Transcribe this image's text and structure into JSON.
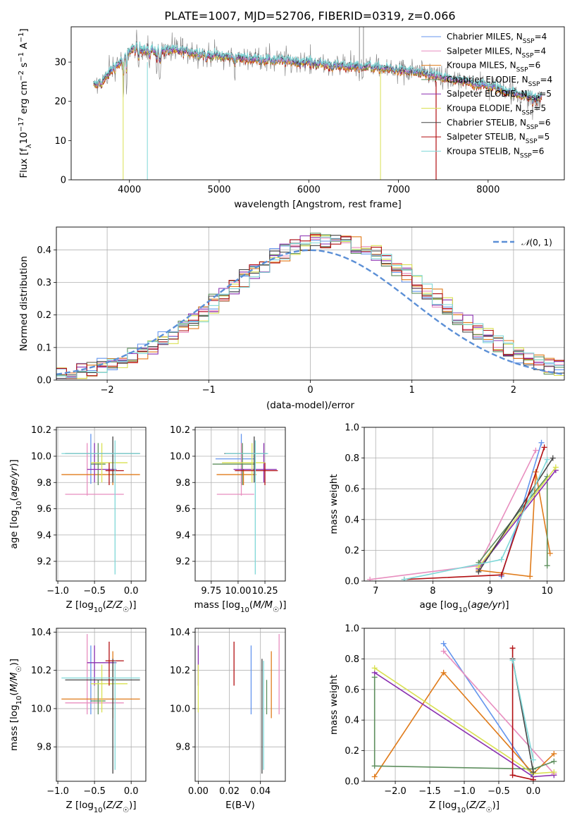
{
  "title": "PLATE=1007, MJD=52706, FIBERID=0319, z=0.066",
  "colors": {
    "chabrier_miles": "#6495ed",
    "salpeter_miles": "#e88ebf",
    "kroupa_miles": "#e07b1a",
    "chabrier_elodie": "#5e8f5e",
    "salpeter_elodie": "#8a2fb0",
    "kroupa_elodie": "#d9e052",
    "chabrier_stelib": "#444444",
    "salpeter_stelib": "#b20f12",
    "kroupa_stelib": "#7fd8d8"
  },
  "legend": [
    {
      "key": "chabrier_miles",
      "label": "Chabrier MILES, N",
      "n": "4"
    },
    {
      "key": "salpeter_miles",
      "label": "Salpeter MILES, N",
      "n": "4"
    },
    {
      "key": "kroupa_miles",
      "label": "Kroupa MILES, N",
      "n": "6"
    },
    {
      "key": "chabrier_elodie",
      "label": "Chabrier ELODIE, N",
      "n": "4"
    },
    {
      "key": "salpeter_elodie",
      "label": "Salpeter ELODIE, N",
      "n": "5"
    },
    {
      "key": "kroupa_elodie",
      "label": "Kroupa ELODIE, N",
      "n": "5"
    },
    {
      "key": "chabrier_stelib",
      "label": "Chabrier STELIB, N",
      "n": "6"
    },
    {
      "key": "salpeter_stelib",
      "label": "Salpeter STELIB, N",
      "n": "5"
    },
    {
      "key": "kroupa_stelib",
      "label": "Kroupa STELIB, N",
      "n": "6"
    }
  ],
  "legend_sub": "SSP",
  "chart_data": [
    {
      "id": "spectrum",
      "type": "line",
      "xlabel": "wavelength [Angstrom, rest frame]",
      "ylabel": "Flux [f",
      "ylabel_parts": [
        "λ",
        "10",
        "−17",
        " erg cm",
        "−2",
        " s",
        "−1",
        " A",
        "−1",
        "]"
      ],
      "xlim": [
        3350,
        8850
      ],
      "ylim": [
        0,
        39
      ],
      "xticks": [
        4000,
        5000,
        6000,
        7000,
        8000
      ],
      "yticks": [
        0,
        10,
        20,
        30
      ],
      "continuum": [
        [
          3600,
          24
        ],
        [
          3700,
          25
        ],
        [
          3800,
          28
        ],
        [
          3900,
          30
        ],
        [
          4000,
          33
        ],
        [
          4100,
          33.5
        ],
        [
          4300,
          33
        ],
        [
          4500,
          33
        ],
        [
          4700,
          32.5
        ],
        [
          5000,
          31.5
        ],
        [
          5300,
          31
        ],
        [
          5600,
          30.5
        ],
        [
          6000,
          30
        ],
        [
          6300,
          29
        ],
        [
          6600,
          29
        ],
        [
          7000,
          28
        ],
        [
          7300,
          27
        ],
        [
          7600,
          25.5
        ],
        [
          8000,
          24
        ],
        [
          8300,
          22
        ],
        [
          8600,
          21
        ]
      ],
      "features": [
        [
          3933,
          -12
        ],
        [
          3968,
          -10
        ],
        [
          4101,
          -6
        ],
        [
          4227,
          -5
        ],
        [
          4304,
          -6
        ],
        [
          4340,
          -7
        ],
        [
          4861,
          -4
        ],
        [
          5175,
          -3
        ],
        [
          5890,
          -2
        ],
        [
          6563,
          -3
        ],
        [
          8500,
          -4
        ],
        [
          8542,
          -5
        ],
        [
          8662,
          -4
        ]
      ]
    },
    {
      "id": "residuals",
      "type": "step-histogram",
      "xlabel": "(data-model)/error",
      "ylabel": "Normed distribution",
      "xlim": [
        -2.5,
        2.5
      ],
      "ylim": [
        0,
        0.47
      ],
      "xticks": [
        -2,
        -1,
        0,
        1,
        2
      ],
      "yticks": [
        0.0,
        0.1,
        0.2,
        0.3,
        0.4
      ],
      "bin_width": 0.1,
      "reference_curve": "N(0,1)"
    },
    {
      "id": "Z-age",
      "type": "errorbar",
      "xlabel": "Z [log",
      "ylabel": "age  [log",
      "xlim": [
        -1.02,
        0.2
      ],
      "ylim": [
        9.05,
        10.22
      ],
      "xticks": [
        -1.0,
        -0.5,
        0.0
      ],
      "yticks": [
        9.2,
        9.4,
        9.6,
        9.8,
        10.0,
        10.2
      ]
    },
    {
      "id": "mass-age",
      "type": "errorbar",
      "xlabel": "mass [log",
      "ylabel": "",
      "xlim": [
        9.6,
        10.44
      ],
      "ylim": [
        9.05,
        10.22
      ],
      "xticks": [
        9.75,
        10.0,
        10.25
      ],
      "yticks": [
        9.2,
        9.4,
        9.6,
        9.8,
        10.0,
        10.2
      ]
    },
    {
      "id": "age-weight",
      "type": "line",
      "xlabel": "age  [log",
      "ylabel": "mass weight",
      "xlim": [
        6.8,
        10.3
      ],
      "ylim": [
        0,
        1.0
      ],
      "xticks": [
        7,
        8,
        9,
        10
      ],
      "yticks": [
        0.0,
        0.2,
        0.4,
        0.6,
        0.8,
        1.0
      ]
    },
    {
      "id": "Z-mass",
      "type": "errorbar",
      "xlabel": "Z [log",
      "ylabel": "mass [log",
      "xlim": [
        -1.02,
        0.2
      ],
      "ylim": [
        9.62,
        10.42
      ],
      "xticks": [
        -1.0,
        -0.5,
        0.0
      ],
      "yticks": [
        9.8,
        10.0,
        10.2,
        10.4
      ]
    },
    {
      "id": "ebv-mass",
      "type": "errorbar",
      "xlabel": "E(B-V)",
      "ylabel": "",
      "xlim": [
        -0.002,
        0.056
      ],
      "ylim": [
        9.62,
        10.42
      ],
      "xticks": [
        0.0,
        0.02,
        0.04
      ],
      "yticks": [
        9.8,
        10.0,
        10.2,
        10.4
      ]
    },
    {
      "id": "Z-weight",
      "type": "line",
      "xlabel": "Z [log",
      "ylabel": "mass weight",
      "xlim": [
        -2.45,
        0.45
      ],
      "ylim": [
        0,
        1.0
      ],
      "xticks": [
        -2.0,
        -1.5,
        -1.0,
        -0.5,
        0.0
      ],
      "yticks": [
        0.0,
        0.2,
        0.4,
        0.6,
        0.8,
        1.0
      ]
    }
  ],
  "models": [
    {
      "key": "chabrier_miles",
      "Z": -0.55,
      "Zlo": -0.55,
      "Zhi": -0.55,
      "age": 9.98,
      "alo": 9.79,
      "ahi": 10.17,
      "mass": 10.03,
      "mlo": 9.97,
      "mhi": 10.33,
      "ebv": 0.034,
      "aw": [
        [
          9.2,
          0.03
        ],
        [
          9.9,
          0.9
        ]
      ],
      "zw": [
        [
          0.0,
          0.03
        ],
        [
          -1.3,
          0.9
        ]
      ]
    },
    {
      "key": "salpeter_miles",
      "Z": -0.6,
      "Zlo": -0.9,
      "Zhi": -0.1,
      "age": 9.71,
      "alo": 9.7,
      "ahi": 10.1,
      "mass": 10.03,
      "mlo": 9.97,
      "mhi": 10.39,
      "ebv": 0.052,
      "aw": [
        [
          6.9,
          0.01
        ],
        [
          8.8,
          0.1
        ],
        [
          9.8,
          0.85
        ]
      ],
      "zw": [
        [
          0.3,
          0.05
        ],
        [
          -1.3,
          0.85
        ]
      ]
    },
    {
      "key": "kroupa_miles",
      "Z": -0.25,
      "Zlo": -0.95,
      "Zhi": 0.12,
      "age": 9.86,
      "alo": 9.78,
      "ahi": 9.9,
      "mass": 10.05,
      "mlo": 9.95,
      "mhi": 10.3,
      "ebv": 0.047,
      "aw": [
        [
          8.8,
          0.07
        ],
        [
          9.7,
          0.03
        ],
        [
          9.8,
          0.71
        ],
        [
          10.05,
          0.18
        ]
      ],
      "zw": [
        [
          -2.3,
          0.03
        ],
        [
          -1.3,
          0.71
        ],
        [
          0.0,
          0.05
        ],
        [
          0.3,
          0.18
        ]
      ]
    },
    {
      "key": "chabrier_elodie",
      "Z": -0.45,
      "Zlo": -0.55,
      "Zhi": -0.35,
      "age": 9.94,
      "alo": 9.78,
      "ahi": 10.1,
      "mass": 10.04,
      "mlo": 9.97,
      "mhi": 10.15,
      "ebv": 0.044,
      "aw": [
        [
          8.8,
          0.12
        ],
        [
          10.0,
          0.68
        ],
        [
          10.0,
          0.1
        ]
      ],
      "zw": [
        [
          -2.3,
          0.68
        ],
        [
          -2.3,
          0.1
        ],
        [
          0.0,
          0.08
        ],
        [
          0.3,
          0.13
        ]
      ]
    },
    {
      "key": "salpeter_elodie",
      "Z": -0.5,
      "Zlo": -0.6,
      "Zhi": -0.2,
      "age": 9.9,
      "alo": 9.8,
      "ahi": 10.1,
      "mass": 10.24,
      "mlo": 10.12,
      "mhi": 10.33,
      "ebv": 0.0,
      "aw": [
        [
          8.8,
          0.08
        ],
        [
          10.15,
          0.72
        ]
      ],
      "zw": [
        [
          -2.3,
          0.71
        ],
        [
          0.0,
          0.03
        ],
        [
          0.3,
          0.04
        ]
      ]
    },
    {
      "key": "kroupa_elodie",
      "Z": -0.4,
      "Zlo": -0.55,
      "Zhi": -0.05,
      "age": 9.95,
      "alo": 9.8,
      "ahi": 10.1,
      "mass": 10.13,
      "mlo": 9.98,
      "mhi": 10.23,
      "ebv": 0.0,
      "aw": [
        [
          8.8,
          0.09
        ],
        [
          10.15,
          0.74
        ]
      ],
      "zw": [
        [
          -2.3,
          0.74
        ],
        [
          0.0,
          0.05
        ],
        [
          0.3,
          0.06
        ]
      ]
    },
    {
      "key": "chabrier_stelib",
      "Z": -0.25,
      "Zlo": -0.9,
      "Zhi": 0.12,
      "age": 10.02,
      "alo": 9.8,
      "ahi": 10.15,
      "mass": 10.15,
      "mlo": 9.66,
      "mhi": 10.26,
      "ebv": 0.041,
      "aw": [
        [
          8.8,
          0.06
        ],
        [
          10.1,
          0.8
        ]
      ],
      "zw": [
        [
          -0.3,
          0.8
        ],
        [
          0.0,
          0.06
        ]
      ]
    },
    {
      "key": "salpeter_stelib",
      "Z": -0.3,
      "Zlo": -0.35,
      "Zhi": -0.1,
      "age": 9.89,
      "alo": 9.78,
      "ahi": 9.95,
      "mass": 10.25,
      "mlo": 10.12,
      "mhi": 10.35,
      "ebv": 0.023,
      "aw": [
        [
          7.5,
          0.01
        ],
        [
          9.2,
          0.04
        ],
        [
          9.95,
          0.87
        ]
      ],
      "zw": [
        [
          -0.3,
          0.87
        ],
        [
          -0.3,
          0.04
        ],
        [
          0.0,
          0.01
        ]
      ]
    },
    {
      "key": "kroupa_stelib",
      "Z": -0.22,
      "Zlo": -0.95,
      "Zhi": 0.12,
      "age": 10.02,
      "alo": 9.1,
      "ahi": 10.12,
      "mass": 10.16,
      "mlo": 9.68,
      "mhi": 10.25,
      "ebv": 0.042,
      "aw": [
        [
          7.5,
          0.01
        ],
        [
          9.2,
          0.14
        ],
        [
          10.0,
          0.79
        ]
      ],
      "zw": [
        [
          -0.3,
          0.79
        ],
        [
          0.0,
          0.14
        ]
      ]
    }
  ]
}
